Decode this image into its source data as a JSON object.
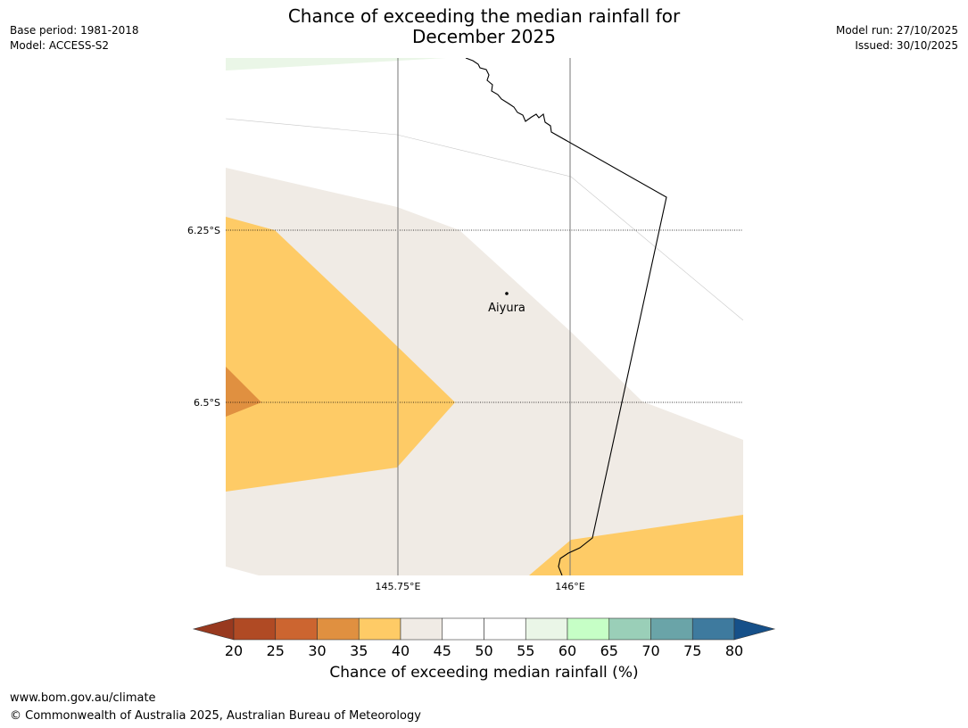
{
  "header": {
    "title_line1": "Chance of exceeding the median rainfall for",
    "title_line2": "December 2025",
    "base_period": "Base period: 1981-2018",
    "model": "Model: ACCESS-S2",
    "model_run": "Model run: 27/10/2025",
    "issued": "Issued: 30/10/2025"
  },
  "map": {
    "lat_labels": [
      "6.25°S",
      "6.5°S"
    ],
    "lon_labels": [
      "145.75°E",
      "146°E"
    ],
    "place": "Aiyura"
  },
  "colorbar": {
    "ticks": [
      "20",
      "25",
      "30",
      "35",
      "40",
      "45",
      "50",
      "55",
      "60",
      "65",
      "70",
      "75",
      "80"
    ],
    "colors": [
      "#b04a24",
      "#cc6530",
      "#e09040",
      "#fecb66",
      "#f0ebe5",
      "#ffffff",
      "#ffffff",
      "#eaf6e7",
      "#c6ffc6",
      "#9acfb8",
      "#6aa4a8",
      "#3e7a9e"
    ],
    "under_color": "#98391f",
    "over_color": "#165089",
    "label": "Chance of exceeding median rainfall (%)"
  },
  "footer": {
    "url": "www.bom.gov.au/climate",
    "copyright": "© Commonwealth of Australia 2025, Australian Bureau of Meteorology"
  }
}
